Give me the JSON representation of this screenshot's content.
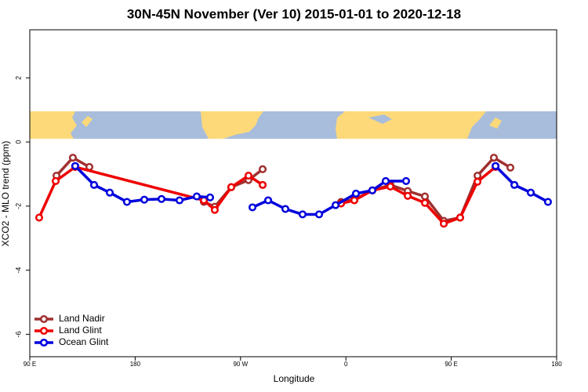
{
  "chart_data": {
    "type": "line",
    "title": "30N-45N November (Ver 10)   2015-01-01 to 2020-12-18",
    "x_label": "Longitude",
    "y_label": "XCO2 - MLO trend (ppm)",
    "xlim": [
      90,
      540
    ],
    "ylim": [
      -6.7,
      3.5
    ],
    "xticks": [
      {
        "value": 90,
        "label": "90 E"
      },
      180,
      {
        "value": 270,
        "label": "90 W"
      },
      {
        "value": 360,
        "label": "0"
      },
      {
        "value": 450,
        "label": "90 E"
      },
      {
        "value": 540,
        "label": "180"
      }
    ],
    "yticks": [
      -6,
      -4,
      -2,
      0,
      2
    ],
    "legend": "bottom-left",
    "series": [
      {
        "name": "Land Nadir",
        "color": "#a03030",
        "x": [
          112.8,
          126.8,
          140.9,
          null,
          238.7,
          248.0,
          262.1,
          276.8,
          288.9,
          null,
          355.9,
          367.2,
          382.6,
          398.0,
          412.8,
          427.5,
          443.6,
          457.6,
          472.4,
          486.4,
          500.5
        ],
        "values": [
          -1.05,
          -0.49,
          -0.78,
          null,
          -1.87,
          -2.02,
          -1.41,
          -1.19,
          -0.85,
          null,
          -1.87,
          -1.8,
          -1.51,
          -1.34,
          -1.53,
          -1.7,
          -2.46,
          -2.36,
          -1.05,
          -0.49,
          -0.8
        ]
      },
      {
        "name": "Land Glint",
        "color": "#ee0000",
        "x": [
          98.0,
          112.1,
          128.8,
          238.7,
          248.0,
          262.1,
          276.8,
          288.9,
          null,
          355.9,
          367.2,
          382.6,
          398.0,
          412.8,
          427.5,
          443.6,
          457.6,
          472.4,
          487.8
        ],
        "values": [
          -2.36,
          -1.22,
          -0.78,
          -1.82,
          -2.12,
          -1.41,
          -1.05,
          -1.34,
          null,
          -1.92,
          -1.82,
          -1.51,
          -1.39,
          -1.68,
          -1.9,
          -2.55,
          -2.36,
          -1.24,
          -0.78
        ]
      },
      {
        "name": "Ocean Glint",
        "color": "#0000dd",
        "x": [
          128.8,
          144.9,
          158.3,
          173.0,
          187.8,
          202.5,
          217.9,
          232.6,
          244.0,
          null,
          280.2,
          293.6,
          308.3,
          323.0,
          337.1,
          351.2,
          368.6,
          382.6,
          394.0,
          411.4,
          null,
          487.8,
          503.9,
          517.9,
          532.6
        ],
        "values": [
          -0.75,
          -1.34,
          -1.58,
          -1.87,
          -1.8,
          -1.78,
          -1.82,
          -1.7,
          -1.73,
          null,
          -2.04,
          -1.82,
          -2.09,
          -2.26,
          -2.26,
          -1.97,
          -1.61,
          -1.51,
          -1.22,
          -1.22,
          null,
          -0.75,
          -1.34,
          -1.58,
          -1.87
        ]
      }
    ]
  }
}
